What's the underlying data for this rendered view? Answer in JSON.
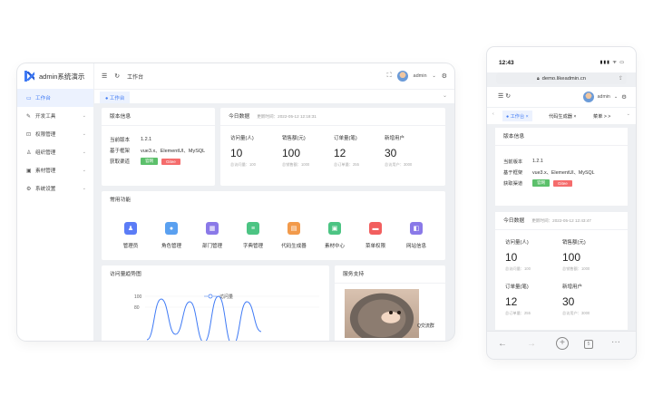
{
  "desktop": {
    "brand": "admin系统演示",
    "sidebar": [
      {
        "label": "工作台",
        "icon": "monitor-icon",
        "glyph": "▭",
        "active": true,
        "chevron": ""
      },
      {
        "label": "开发工具",
        "icon": "wrench-icon",
        "glyph": "✎",
        "active": false,
        "chevron": "⌄"
      },
      {
        "label": "权限管理",
        "icon": "lock-icon",
        "glyph": "⊡",
        "active": false,
        "chevron": "⌄"
      },
      {
        "label": "组织管理",
        "icon": "user-icon",
        "glyph": "♙",
        "active": false,
        "chevron": "⌄"
      },
      {
        "label": "素材管理",
        "icon": "image-icon",
        "glyph": "▣",
        "active": false,
        "chevron": "⌄"
      },
      {
        "label": "系统设置",
        "icon": "gear-icon",
        "glyph": "⚙",
        "active": false,
        "chevron": "⌄"
      }
    ],
    "topbar": {
      "breadcrumb": "工作台",
      "username": "admin"
    },
    "tab": "● 工作台",
    "version": {
      "title": "版本信息",
      "rows": [
        {
          "k": "当前版本",
          "v": "1.2.1"
        },
        {
          "k": "基于框架",
          "v": "vue3.x、ElementUI、MySQL"
        },
        {
          "k": "获取渠道",
          "v": ""
        }
      ],
      "badges": [
        "官网",
        "Gitee"
      ]
    },
    "today": {
      "title": "今日数据",
      "updated": "更新时间：2022-05-12 12:18:31",
      "stats": [
        {
          "label": "访问量(人)",
          "value": "10",
          "total": "总访问量：100"
        },
        {
          "label": "销售额(元)",
          "value": "100",
          "total": "总销售额：1000"
        },
        {
          "label": "订单量(笔)",
          "value": "12",
          "total": "总订单量：255"
        },
        {
          "label": "新增用户",
          "value": "30",
          "total": "总访用户：3000"
        }
      ]
    },
    "functions": {
      "title": "常用功能",
      "items": [
        {
          "label": "管理员",
          "icon": "admin-icon",
          "glyph": "♟",
          "color": "#5b7cf6"
        },
        {
          "label": "角色管理",
          "icon": "role-icon",
          "glyph": "●",
          "color": "#5aa0f0"
        },
        {
          "label": "部门管理",
          "icon": "department-icon",
          "glyph": "▦",
          "color": "#8a79e8"
        },
        {
          "label": "字典管理",
          "icon": "dictionary-icon",
          "glyph": "≡",
          "color": "#4cc483"
        },
        {
          "label": "代码生成器",
          "icon": "code-generator-icon",
          "glyph": "▤",
          "color": "#f29a4b"
        },
        {
          "label": "素材中心",
          "icon": "material-icon",
          "glyph": "▣",
          "color": "#4cc483"
        },
        {
          "label": "菜单权限",
          "icon": "menu-permission-icon",
          "glyph": "▬",
          "color": "#f25f5f"
        },
        {
          "label": "网站信息",
          "icon": "website-icon",
          "glyph": "◧",
          "color": "#8a79e8"
        }
      ]
    },
    "visits": {
      "title": "访问量趋势图",
      "legend": "访问量"
    },
    "support": {
      "title": "服务支持",
      "caption": "Q交流群"
    }
  },
  "chart_data": {
    "type": "line",
    "title": "访问量趋势图",
    "series": [
      {
        "name": "访问量",
        "values": [
          20,
          95,
          30,
          90,
          15,
          100,
          10,
          90,
          35
        ]
      }
    ],
    "yticks": [
      100,
      80
    ],
    "ylim": [
      0,
      110
    ],
    "color": "#3f7af5"
  },
  "mobile": {
    "time": "12:43",
    "signal": "▮▮▮ ᯤ ▭",
    "url": "demo.likeadmin.cn",
    "username": "admin",
    "tabs": [
      {
        "label": "● 工作台 ×",
        "active": true
      },
      {
        "label": "代码生成器 ×",
        "active": false
      },
      {
        "label": "菜单 > >",
        "active": false
      }
    ],
    "version_title": "版本信息",
    "version_rows": [
      {
        "k": "当前版本",
        "v": "1.2.1"
      },
      {
        "k": "基于框架",
        "v": "vue3.x、ElementUI、MySQL"
      },
      {
        "k": "获取渠道",
        "v": ""
      }
    ],
    "badges": [
      "官网",
      "Gitee"
    ],
    "today_title": "今日数据",
    "updated": "更新时间：2022-05-12 12:43:47",
    "stats": [
      {
        "label": "访问量(人)",
        "value": "10",
        "total": "总访问量：100"
      },
      {
        "label": "销售额(元)",
        "value": "100",
        "total": "总销售额：1000"
      },
      {
        "label": "订单量(笔)",
        "value": "12",
        "total": "总订单量：255"
      },
      {
        "label": "新增用户",
        "value": "30",
        "total": "总访用户：3000"
      }
    ]
  }
}
